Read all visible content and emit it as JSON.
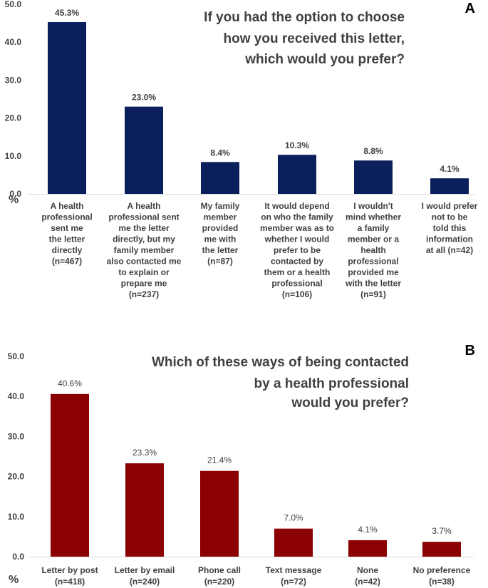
{
  "chart_data": [
    {
      "type": "bar",
      "panel_label": "A",
      "title_lines": [
        "If you had the option to choose",
        "how you received this letter,",
        "which would you prefer?"
      ],
      "ylabel": "%",
      "ylim": [
        0,
        50
      ],
      "yticks": [
        "0.0",
        "10.0",
        "20.0",
        "30.0",
        "40.0",
        "50.0"
      ],
      "bar_color": "#0b1f5c",
      "categories": [
        [
          "A health",
          "professional",
          "sent me",
          "the letter",
          "directly",
          "(n=467)"
        ],
        [
          "A health",
          "professional sent",
          "me the letter",
          "directly, but my",
          "family member",
          "also contacted me",
          "to explain or",
          "prepare me",
          "(n=237)"
        ],
        [
          "My family",
          "member",
          "provided",
          "me with",
          "the letter",
          "(n=87)"
        ],
        [
          "It would depend",
          "on who the family",
          "member was as to",
          "whether I would",
          "prefer to be",
          "contacted by",
          "them or a health",
          "professional",
          "(n=106)"
        ],
        [
          "I wouldn't",
          "mind whether",
          "a family",
          "member or a",
          "health",
          "professional",
          "provided me",
          "with the letter",
          "(n=91)"
        ],
        [
          "I would prefer",
          "not to be",
          "told this",
          "information",
          "at all (n=42)"
        ]
      ],
      "values": [
        45.3,
        23.0,
        8.4,
        10.3,
        8.8,
        4.1
      ],
      "value_labels": [
        "45.3%",
        "23.0%",
        "8.4%",
        "10.3%",
        "8.8%",
        "4.1%"
      ]
    },
    {
      "type": "bar",
      "panel_label": "B",
      "title_lines": [
        "Which of these ways of being contacted",
        "by a health professional",
        "would you prefer?"
      ],
      "ylabel": "%",
      "ylim": [
        0,
        50
      ],
      "yticks": [
        "0.0",
        "10.0",
        "20.0",
        "30.0",
        "40.0",
        "50.0"
      ],
      "bar_color": "#8b0000",
      "categories": [
        [
          "Letter by post",
          "(n=418)"
        ],
        [
          "Letter by email",
          "(n=240)"
        ],
        [
          "Phone call",
          "(n=220)"
        ],
        [
          "Text message",
          "(n=72)"
        ],
        [
          "None",
          "(n=42)"
        ],
        [
          "No preference",
          "(n=38)"
        ]
      ],
      "values": [
        40.6,
        23.3,
        21.4,
        7.0,
        4.1,
        3.7
      ],
      "value_labels": [
        "40.6%",
        "23.3%",
        "21.4%",
        "7.0%",
        "4.1%",
        "3.7%"
      ]
    }
  ]
}
